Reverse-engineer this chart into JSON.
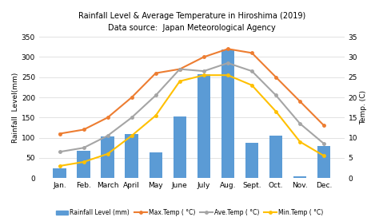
{
  "months": [
    "Jan.",
    "Feb.",
    "March",
    "April",
    "May",
    "June",
    "July",
    "Aug.",
    "Sept.",
    "Oct.",
    "Nov.",
    "Dec."
  ],
  "rainfall": [
    25,
    68,
    103,
    110,
    63,
    152,
    258,
    318,
    87,
    105,
    5,
    80
  ],
  "max_temp": [
    11,
    12,
    15,
    20,
    26,
    27,
    30,
    32,
    31,
    25,
    19,
    13
  ],
  "ave_temp": [
    6.5,
    7.5,
    10.5,
    15,
    20.5,
    27,
    26.5,
    28.5,
    26.5,
    20.5,
    13.5,
    8.5
  ],
  "min_temp": [
    3,
    4,
    6,
    10.5,
    15.5,
    24,
    25.5,
    25.5,
    23,
    16.5,
    9,
    5.5
  ],
  "bar_color": "#5B9BD5",
  "max_color": "#ED7D31",
  "ave_color": "#A5A5A5",
  "min_color": "#FFC000",
  "title_line1": "Rainfall Level & Average Temperature in Hiroshima (2019)",
  "title_line2": "Data source:  Japan Meteorological Agency",
  "ylabel_left": "Rainfall  Level(mm)",
  "ylabel_right": "Temp. (C)",
  "ylim_left": [
    0,
    350
  ],
  "ylim_right": [
    0,
    35
  ],
  "yticks_left": [
    0,
    50,
    100,
    150,
    200,
    250,
    300,
    350
  ],
  "yticks_right": [
    0,
    5,
    10,
    15,
    20,
    25,
    30,
    35
  ],
  "legend_labels": [
    "Rainfall Level (mm)",
    "Max.Temp ( °C)",
    "Ave.Temp ( °C)",
    "Min.Temp ( °C)"
  ],
  "bg_color": "#FFFFFF",
  "grid_color": "#DDDDDD"
}
